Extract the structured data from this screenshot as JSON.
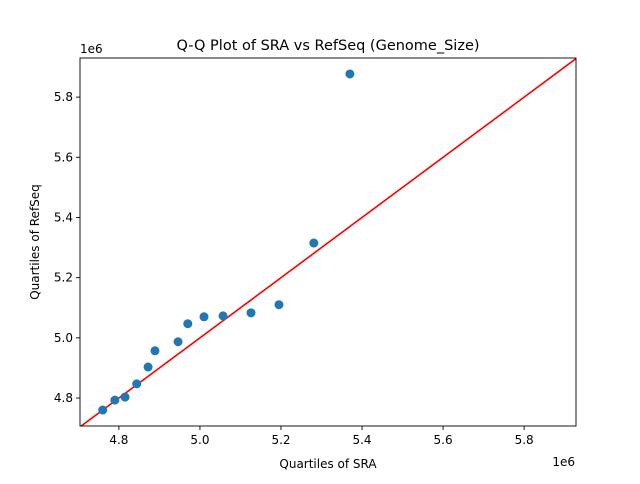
{
  "chart_data": {
    "type": "scatter",
    "title": "Q-Q Plot of SRA vs RefSeq (Genome_Size)",
    "xlabel": "Quartiles of SRA",
    "ylabel": "Quartiles of RefSeq",
    "x_offset_label": "1e6",
    "y_offset_label": "1e6",
    "xlim": [
      4.704,
      5.928
    ],
    "ylim": [
      4.707,
      5.93
    ],
    "xticks": [
      4.8,
      5.0,
      5.2,
      5.4,
      5.6,
      5.8
    ],
    "xtick_labels": [
      "4.8",
      "5.0",
      "5.2",
      "5.4",
      "5.6",
      "5.8"
    ],
    "yticks": [
      4.8,
      5.0,
      5.2,
      5.4,
      5.6,
      5.8
    ],
    "ytick_labels": [
      "4.8",
      "5.0",
      "5.2",
      "5.4",
      "5.6",
      "5.8"
    ],
    "grid": false,
    "points": {
      "color": "#1f77b4",
      "x": [
        4.76,
        4.79,
        4.815,
        4.844,
        4.872,
        4.889,
        4.946,
        4.97,
        5.01,
        5.057,
        5.126,
        5.195,
        5.281,
        5.37
      ],
      "y": [
        4.76,
        4.793,
        4.803,
        4.847,
        4.903,
        4.957,
        4.987,
        5.047,
        5.07,
        5.073,
        5.083,
        5.11,
        5.315,
        5.877
      ]
    },
    "reference_line": {
      "type": "y=x",
      "color": "#ff0000"
    }
  }
}
